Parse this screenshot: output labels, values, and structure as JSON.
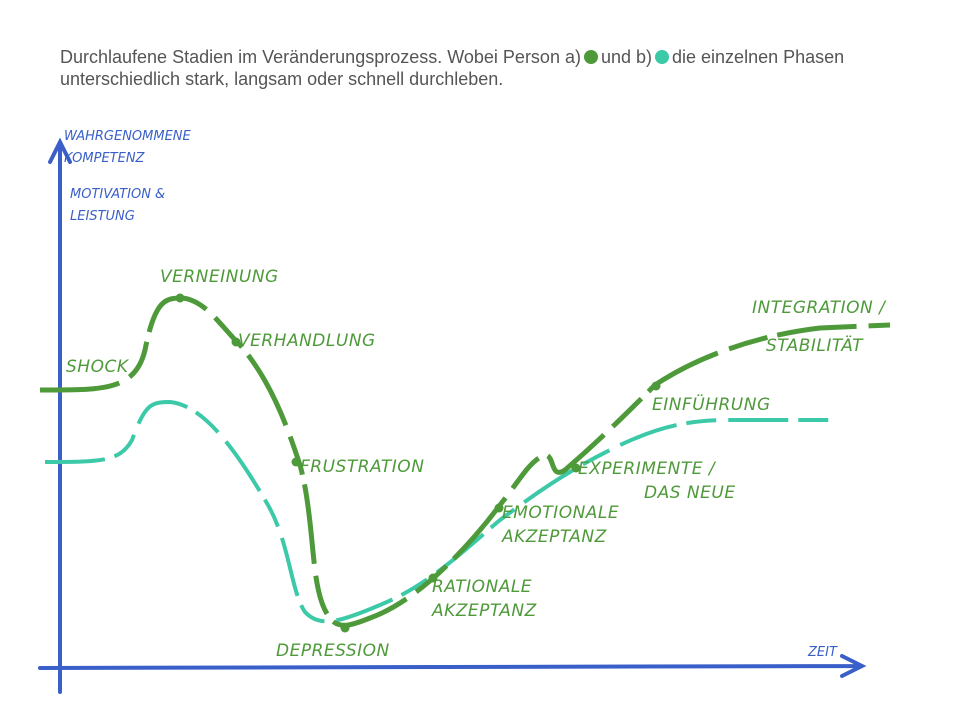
{
  "header": {
    "parts": [
      "Durchlaufene Stadien im Veränderungsprozess. Wobei Person a)",
      "und b)",
      "die einzelnen Phasen unterschiedlich stark, langsam oder schnell durchleben."
    ]
  },
  "axes": {
    "y_label": [
      "WAHRGENOMMENE",
      "KOMPETENZ",
      "MOTIVATION &",
      "LEISTUNG"
    ],
    "x_label": "ZEIT"
  },
  "phases": [
    {
      "lines": [
        "SHOCK"
      ]
    },
    {
      "lines": [
        "VERNEINUNG"
      ]
    },
    {
      "lines": [
        "VERHANDLUNG"
      ]
    },
    {
      "lines": [
        "FRUSTRATION"
      ]
    },
    {
      "lines": [
        "DEPRESSION"
      ]
    },
    {
      "lines": [
        "RATIONALE",
        "AKZEPTANZ"
      ]
    },
    {
      "lines": [
        "EMOTIONALE",
        "AKZEPTANZ"
      ]
    },
    {
      "lines": [
        "EXPERIMENTE /",
        "DAS NEUE"
      ]
    },
    {
      "lines": [
        "EINFÜHRUNG"
      ]
    },
    {
      "lines": [
        "INTEGRATION /",
        "STABILITÄT"
      ]
    }
  ]
}
